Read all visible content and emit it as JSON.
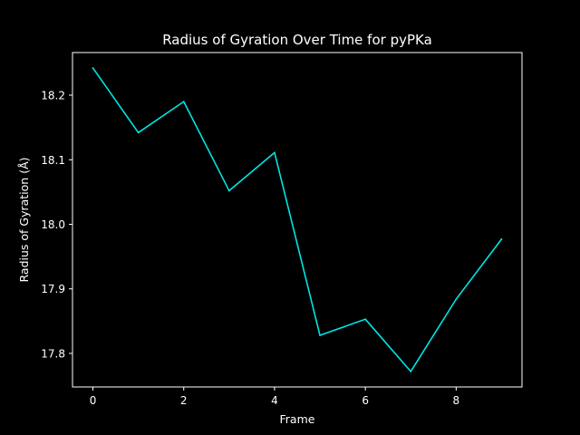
{
  "chart_data": {
    "type": "line",
    "title": "Radius of Gyration Over Time for pyPKa",
    "xlabel": "Frame",
    "ylabel": "Radius of Gyration (Å)",
    "x": [
      0,
      1,
      2,
      3,
      4,
      5,
      6,
      7,
      8,
      9
    ],
    "series": [
      {
        "values": [
          18.242,
          18.142,
          18.19,
          18.052,
          18.111,
          17.828,
          17.853,
          17.772,
          17.884,
          17.977
        ],
        "color": "#00e5e5"
      }
    ],
    "xlim": [
      -0.45,
      9.45
    ],
    "ylim": [
      17.748,
      18.266
    ],
    "xticks": [
      0,
      2,
      4,
      6,
      8
    ],
    "xtick_labels": [
      "0",
      "2",
      "4",
      "6",
      "8"
    ],
    "yticks": [
      17.8,
      17.9,
      18.0,
      18.1,
      18.2
    ],
    "ytick_labels": [
      "17.8",
      "17.9",
      "18.0",
      "18.1",
      "18.2"
    ],
    "grid": false,
    "legend": "none",
    "colors": {
      "background": "#000000",
      "axes": "#ffffff",
      "line": "#00e5e5",
      "text": "#ffffff"
    }
  }
}
